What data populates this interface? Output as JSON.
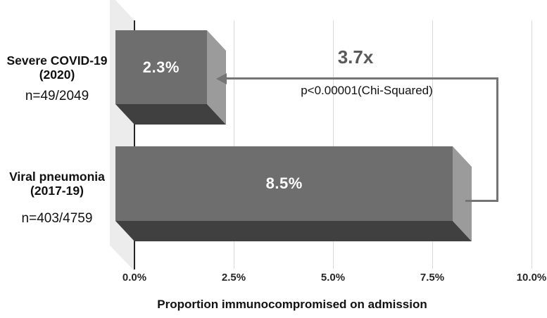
{
  "chart_data": {
    "type": "bar",
    "orientation": "horizontal",
    "style": "3d",
    "xlabel": "Proportion immunocompromised on admission",
    "xlim": [
      0,
      10
    ],
    "x_tick_step_pct": 2.5,
    "x_ticks": [
      "0.0%",
      "2.5%",
      "5.0%",
      "7.5%",
      "10.0%"
    ],
    "grid": true,
    "legend": false,
    "categories": [
      "Severe COVID-19 (2020)",
      "Viral pneumonia (2017-19)"
    ],
    "values": [
      2.3,
      8.5
    ],
    "value_labels": [
      "2.3%",
      "8.5%"
    ],
    "categories_detail": [
      {
        "line1": "Severe COVID-19",
        "line2": "(2020)",
        "n": "n=49/2049"
      },
      {
        "line1": "Viral pneumonia",
        "line2": "(2017-19)",
        "n": "n=403/4759"
      }
    ],
    "annotation": {
      "ratio": "3.7x",
      "pvalue": "p<0.00001(Chi-Squared)"
    },
    "colors": {
      "bar_front": "#6e6e6e",
      "bar_side": "#9b9b9b",
      "bar_bottom": "#404040",
      "wall": "#ececec",
      "gridline": "#d9d9d9",
      "axis_line": "#262626",
      "arrow": "#757575",
      "ratio_text": "#595959",
      "text": "#111111"
    }
  }
}
